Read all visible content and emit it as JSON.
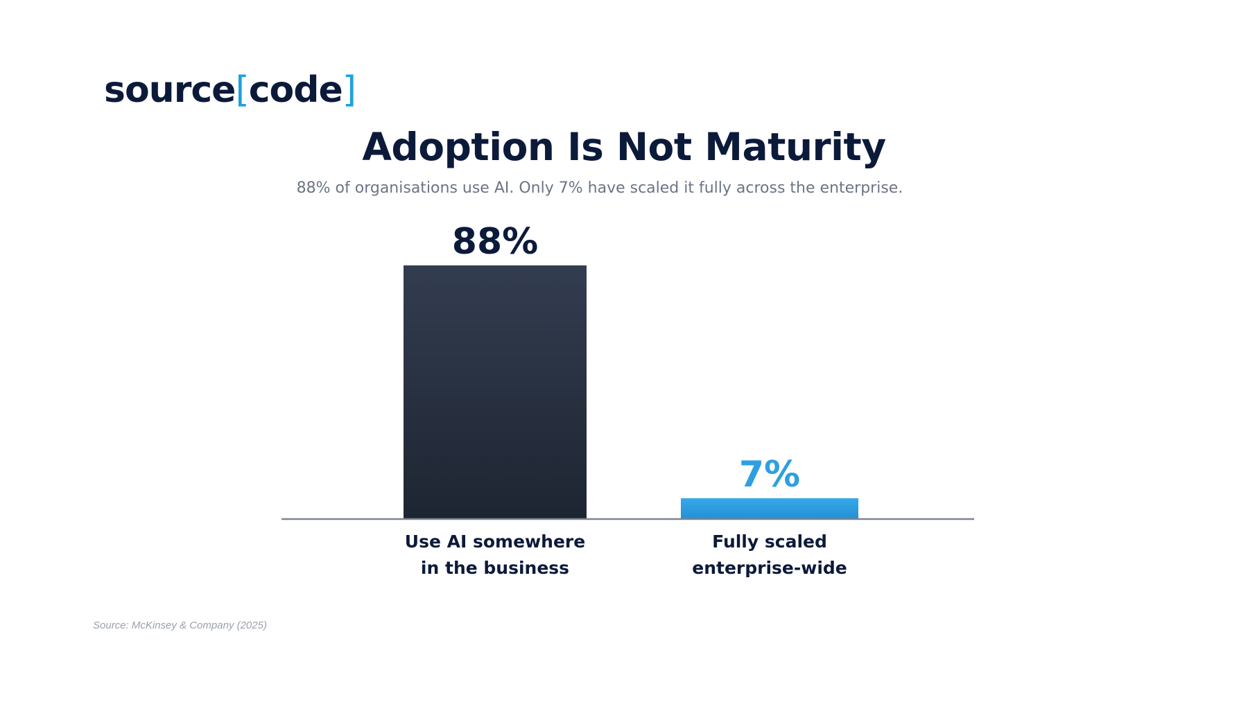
{
  "logo": {
    "text_before": "source",
    "bracket_open": "[",
    "text_inner": "code",
    "bracket_close": "]"
  },
  "title": "Adoption Is Not Maturity",
  "subtitle": "88% of organisations use AI. Only 7% have scaled it fully across the enterprise.",
  "source": "Source: McKinsey & Company (2025)",
  "colors": {
    "dark_bar": "#2a3446",
    "accent": "#2e9fe0",
    "text_dark": "#0c1a3a",
    "axis": "#7c8592"
  },
  "chart_data": {
    "type": "bar",
    "categories": [
      [
        "Use AI somewhere",
        "in the business"
      ],
      [
        "Fully scaled",
        "enterprise-wide"
      ]
    ],
    "values": [
      88,
      7
    ],
    "value_labels": [
      "88%",
      "7%"
    ],
    "bar_colors": [
      "#2a3446",
      "#2e9fe0"
    ],
    "label_colors": [
      "#0c1a3a",
      "#2e9fe0"
    ],
    "ylim": [
      0,
      100
    ],
    "grid": false,
    "legend": "none"
  }
}
